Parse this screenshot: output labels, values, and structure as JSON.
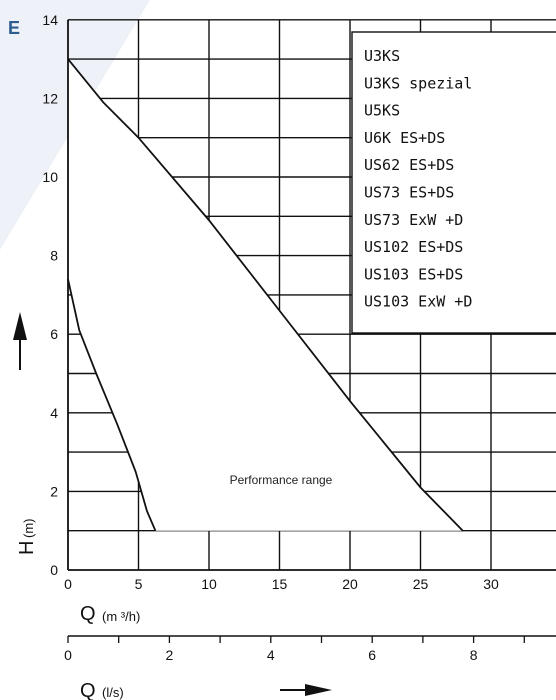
{
  "corner_mark": "E",
  "chart_data": {
    "type": "line",
    "xlabel": "Q",
    "xunit": "(m ³/h)",
    "x2label": "Q",
    "x2unit": "(l/s)",
    "ylabel": "H",
    "yunit": "(m)",
    "xlim": [
      0,
      35
    ],
    "ylim": [
      0,
      14
    ],
    "x2lim": [
      0,
      9.72
    ],
    "x_ticks": [
      "0",
      "5",
      "10",
      "15",
      "20",
      "25",
      "30"
    ],
    "x2_ticks": [
      "0",
      "2",
      "4",
      "6",
      "8"
    ],
    "y_ticks": [
      "0",
      "2",
      "4",
      "6",
      "8",
      "10",
      "12",
      "14"
    ],
    "legend": [
      "U3KS",
      "U3KS spezial",
      "U5KS",
      "U6K ES+DS",
      "US62 ES+DS",
      "US73 ES+DS",
      "US73 ExW +D",
      "US102 ES+DS",
      "US103 ES+DS",
      "US103 ExW +D"
    ],
    "annotation": "Performance range",
    "series": [
      {
        "role": "upper-boundary",
        "x": [
          0,
          2.5,
          5,
          10,
          15,
          20,
          25,
          28
        ],
        "y": [
          13,
          11.9,
          11,
          8.9,
          6.6,
          4.3,
          2.1,
          1
        ]
      },
      {
        "role": "lower-boundary",
        "x": [
          0,
          0.8,
          2,
          3.5,
          4.8,
          5.6,
          6.2
        ],
        "y": [
          7.4,
          6.1,
          5,
          3.7,
          2.5,
          1.5,
          1
        ]
      }
    ]
  }
}
